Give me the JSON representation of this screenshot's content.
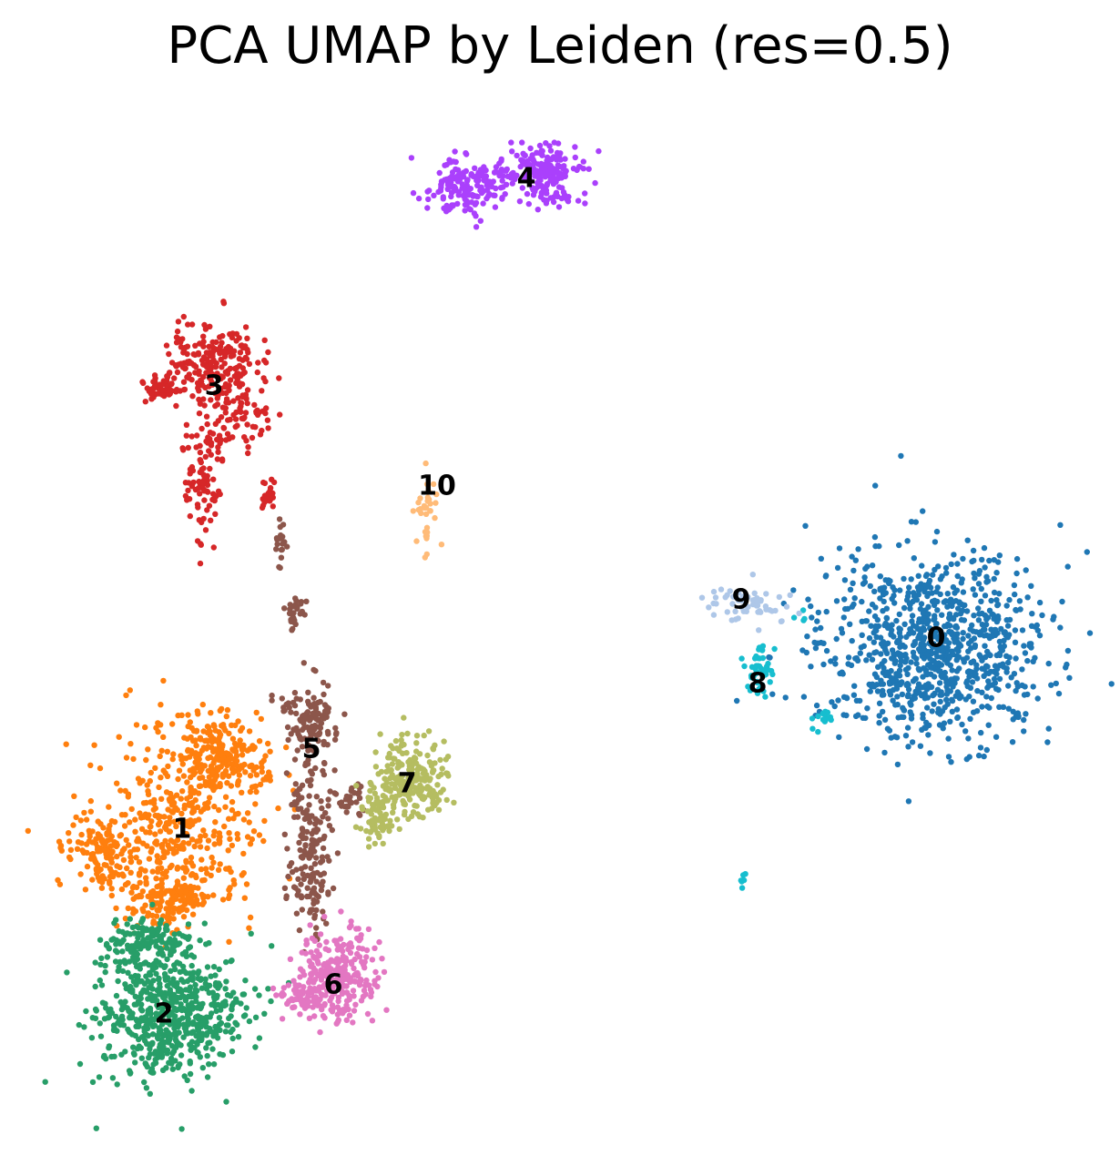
{
  "chart_data": {
    "type": "scatter",
    "title": "PCA UMAP by Leiden (res=0.5)",
    "xlabel": "",
    "ylabel": "",
    "axes_visible": false,
    "grid": false,
    "legend": "on data",
    "series": [
      {
        "name": "0",
        "color": "#1f77b4",
        "n": 900,
        "blobs": [
          {
            "x": 1025,
            "y": 710,
            "sx": 62,
            "sy": 52,
            "w": 1
          }
        ]
      },
      {
        "name": "1",
        "color": "#ff7f0e",
        "n": 850,
        "blobs": [
          {
            "x": 200,
            "y": 905,
            "sx": 45,
            "sy": 50,
            "w": 0.45
          },
          {
            "x": 240,
            "y": 830,
            "sx": 25,
            "sy": 22,
            "w": 0.25
          },
          {
            "x": 110,
            "y": 935,
            "sx": 18,
            "sy": 20,
            "w": 0.15
          },
          {
            "x": 185,
            "y": 990,
            "sx": 22,
            "sy": 15,
            "w": 0.15
          }
        ]
      },
      {
        "name": "2",
        "color": "#279e68",
        "n": 750,
        "blobs": [
          {
            "x": 185,
            "y": 1115,
            "sx": 40,
            "sy": 35,
            "w": 0.8
          },
          {
            "x": 165,
            "y": 1040,
            "sx": 25,
            "sy": 15,
            "w": 0.2
          }
        ]
      },
      {
        "name": "3",
        "color": "#d62728",
        "n": 450,
        "blobs": [
          {
            "x": 230,
            "y": 400,
            "sx": 25,
            "sy": 22,
            "w": 0.45
          },
          {
            "x": 260,
            "y": 450,
            "sx": 20,
            "sy": 25,
            "w": 0.2
          },
          {
            "x": 225,
            "y": 520,
            "sx": 12,
            "sy": 30,
            "w": 0.2
          },
          {
            "x": 175,
            "y": 425,
            "sx": 12,
            "sy": 8,
            "w": 0.1
          },
          {
            "x": 295,
            "y": 545,
            "sx": 4,
            "sy": 10,
            "w": 0.05
          }
        ]
      },
      {
        "name": "4",
        "color": "#aa40fc",
        "n": 380,
        "blobs": [
          {
            "x": 600,
            "y": 192,
            "sx": 18,
            "sy": 15,
            "w": 0.5
          },
          {
            "x": 505,
            "y": 205,
            "sx": 22,
            "sy": 16,
            "w": 0.35
          },
          {
            "x": 545,
            "y": 195,
            "sx": 15,
            "sy": 10,
            "w": 0.15
          }
        ]
      },
      {
        "name": "5",
        "color": "#8c564b",
        "n": 380,
        "blobs": [
          {
            "x": 340,
            "y": 790,
            "sx": 15,
            "sy": 22,
            "w": 0.3
          },
          {
            "x": 340,
            "y": 910,
            "sx": 12,
            "sy": 55,
            "w": 0.45
          },
          {
            "x": 385,
            "y": 880,
            "sx": 10,
            "sy": 8,
            "w": 0.08
          },
          {
            "x": 325,
            "y": 675,
            "sx": 5,
            "sy": 10,
            "w": 0.07
          },
          {
            "x": 308,
            "y": 595,
            "sx": 3,
            "sy": 15,
            "w": 0.05
          },
          {
            "x": 345,
            "y": 985,
            "sx": 6,
            "sy": 12,
            "w": 0.05
          }
        ]
      },
      {
        "name": "6",
        "color": "#e377c2",
        "n": 330,
        "blobs": [
          {
            "x": 370,
            "y": 1075,
            "sx": 22,
            "sy": 25,
            "w": 0.85
          },
          {
            "x": 325,
            "y": 1095,
            "sx": 12,
            "sy": 8,
            "w": 0.15
          }
        ]
      },
      {
        "name": "7",
        "color": "#b5bd61",
        "n": 300,
        "blobs": [
          {
            "x": 450,
            "y": 855,
            "sx": 20,
            "sy": 20,
            "w": 0.75
          },
          {
            "x": 415,
            "y": 895,
            "sx": 10,
            "sy": 18,
            "w": 0.25
          }
        ]
      },
      {
        "name": "8",
        "color": "#17becf",
        "n": 70,
        "blobs": [
          {
            "x": 835,
            "y": 740,
            "sx": 8,
            "sy": 15,
            "w": 0.65
          },
          {
            "x": 905,
            "y": 790,
            "sx": 6,
            "sy": 5,
            "w": 0.2
          },
          {
            "x": 815,
            "y": 970,
            "sx": 2,
            "sy": 6,
            "w": 0.1
          },
          {
            "x": 880,
            "y": 678,
            "sx": 5,
            "sy": 4,
            "w": 0.05
          }
        ]
      },
      {
        "name": "9",
        "color": "#aec7e8",
        "n": 60,
        "blobs": [
          {
            "x": 825,
            "y": 665,
            "sx": 25,
            "sy": 10,
            "w": 1
          }
        ]
      },
      {
        "name": "10",
        "color": "#ffbb78",
        "n": 35,
        "blobs": [
          {
            "x": 470,
            "y": 560,
            "sx": 6,
            "sy": 22,
            "w": 1
          }
        ]
      }
    ],
    "labels": [
      {
        "text": "0",
        "x": 1028,
        "y": 702
      },
      {
        "text": "1",
        "x": 200,
        "y": 912
      },
      {
        "text": "2",
        "x": 180,
        "y": 1115
      },
      {
        "text": "3",
        "x": 235,
        "y": 425
      },
      {
        "text": "4",
        "x": 578,
        "y": 197
      },
      {
        "text": "5",
        "x": 342,
        "y": 824
      },
      {
        "text": "6",
        "x": 366,
        "y": 1083
      },
      {
        "text": "7",
        "x": 447,
        "y": 862
      },
      {
        "text": "8",
        "x": 832,
        "y": 752
      },
      {
        "text": "9",
        "x": 814,
        "y": 660
      },
      {
        "text": "10",
        "x": 480,
        "y": 535
      }
    ]
  }
}
